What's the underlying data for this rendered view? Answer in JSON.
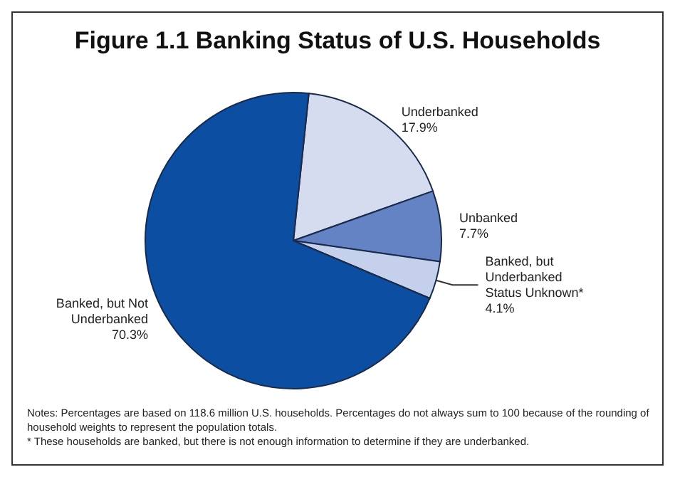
{
  "chart_data": {
    "type": "pie",
    "title": "Figure 1.1 Banking Status of U.S. Households",
    "categories": [
      "Underbanked",
      "Unbanked",
      "Banked, but Underbanked Status Unknown*",
      "Banked, but Not Underbanked"
    ],
    "values": [
      17.9,
      7.7,
      4.1,
      70.3
    ],
    "colors": [
      "#d6dcef",
      "#6383c4",
      "#c5d1ec",
      "#0b4ea2"
    ],
    "value_labels": [
      "17.9%",
      "7.7%",
      "4.1%",
      "70.3%"
    ],
    "annotations": [
      "Notes: Percentages are based on 118.6 million U.S. households. Percentages do not always sum to 100 because of the rounding of household weights to represent the population totals.",
      "* These households are banked, but there is not enough information to determine if they are underbanked."
    ]
  }
}
